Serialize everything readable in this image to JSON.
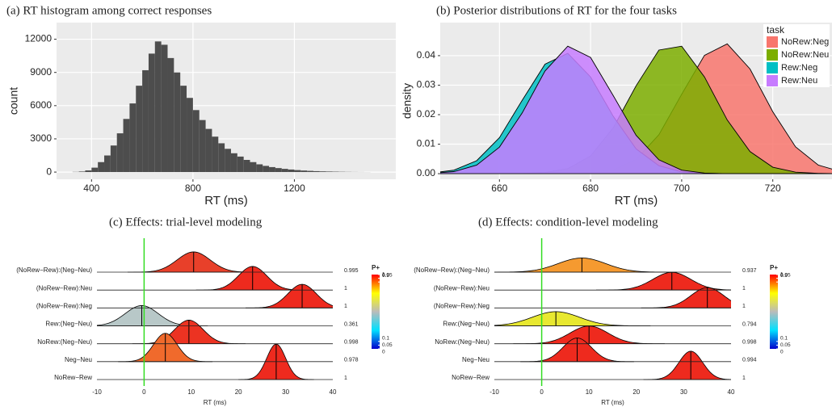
{
  "chart_data": [
    {
      "type": "histogram",
      "title": "(a) RT histogram among correct responses",
      "xlabel": "RT (ms)",
      "ylabel": "count",
      "bins": [
        325,
        350,
        375,
        400,
        425,
        450,
        475,
        500,
        525,
        550,
        575,
        600,
        625,
        650,
        675,
        700,
        725,
        750,
        775,
        800,
        825,
        850,
        875,
        900,
        925,
        950,
        975,
        1000,
        1025,
        1050,
        1075,
        1100,
        1125,
        1150,
        1175,
        1200,
        1225,
        1250,
        1275,
        1300,
        1325,
        1350,
        1375,
        1400,
        1425,
        1450,
        1475,
        1500
      ],
      "counts": [
        20,
        50,
        150,
        400,
        900,
        1500,
        2400,
        3500,
        4800,
        6200,
        7800,
        9200,
        10700,
        11800,
        11500,
        10300,
        9000,
        7800,
        6700,
        5600,
        4700,
        3900,
        3200,
        2600,
        2100,
        1700,
        1400,
        1100,
        900,
        700,
        560,
        450,
        360,
        290,
        230,
        180,
        140,
        110,
        85,
        65,
        50,
        38,
        28,
        20,
        14,
        10,
        6
      ],
      "color": "#4d4d4d",
      "xlim": [
        262,
        1600
      ],
      "ylim": [
        -650,
        13500
      ],
      "xticks": [
        400,
        800,
        1200
      ],
      "yticks": [
        0,
        3000,
        6000,
        9000,
        12000
      ],
      "grid": true
    },
    {
      "type": "density",
      "title": "(b) Posterior distributions of RT for the four tasks",
      "xlabel": "RT (ms)",
      "ylabel": "density",
      "x": [
        645,
        650,
        655,
        660,
        665,
        670,
        675,
        680,
        685,
        690,
        695,
        700,
        705,
        710,
        715,
        720,
        725,
        730,
        735,
        740
      ],
      "series": [
        {
          "name": "NoRew:Neg",
          "color": "#f8766d",
          "values": [
            0,
            0,
            0,
            0,
            0,
            0,
            0,
            0.0003,
            0.0013,
            0.0048,
            0.0132,
            0.0269,
            0.0401,
            0.044,
            0.0355,
            0.021,
            0.0091,
            0.0029,
            0.0007,
            0.0001
          ]
        },
        {
          "name": "NoRew:Neu",
          "color": "#7cae00",
          "values": [
            0,
            0,
            0,
            0,
            0.0001,
            0.0004,
            0.0017,
            0.006,
            0.0156,
            0.0298,
            0.0419,
            0.0432,
            0.0328,
            0.0182,
            0.0075,
            0.0022,
            0.0005,
            0.0001,
            0,
            0
          ]
        },
        {
          "name": "Rew:Neg",
          "color": "#00bfc4",
          "values": [
            0.0002,
            0.0012,
            0.0044,
            0.0122,
            0.0249,
            0.0371,
            0.0408,
            0.0328,
            0.0194,
            0.0084,
            0.0027,
            0.0006,
            0.0001,
            0,
            0,
            0,
            0,
            0,
            0,
            0
          ]
        },
        {
          "name": "Rew:Neu",
          "color": "#c77cff",
          "values": [
            0.0001,
            0.0007,
            0.0029,
            0.009,
            0.0206,
            0.0348,
            0.0432,
            0.0394,
            0.0264,
            0.013,
            0.0047,
            0.0012,
            0.0002,
            0,
            0,
            0,
            0,
            0,
            0,
            0
          ]
        }
      ],
      "xlim": [
        647,
        733
      ],
      "ylim": [
        -0.0019,
        0.0512
      ],
      "xticks": [
        660,
        680,
        700,
        720
      ],
      "yticks": [
        {
          "value": 0,
          "label": "0.00"
        },
        {
          "value": 0.01,
          "label": "0.01"
        },
        {
          "value": 0.02,
          "label": "0.02"
        },
        {
          "value": 0.03,
          "label": "0.03"
        },
        {
          "value": 0.04,
          "label": "0.04"
        }
      ],
      "grid": true,
      "legend_title": "task",
      "legend": "top-right"
    },
    {
      "type": "ridgeline",
      "title": "(c) Effects: trial-level modeling",
      "xlabel": "RT (ms)",
      "categories": [
        "(NoRew−Rew):(Neg−Neu)",
        "(NoRew−Rew):Neu",
        "(NoRew−Rew):Neg",
        "Rew:(Neg−Neu)",
        "NoRew:(Neg−Neu)",
        "Neg−Neu",
        "NoRew−Rew"
      ],
      "values": [
        10.5,
        23,
        33.5,
        -0.5,
        9.5,
        4.5,
        28
      ],
      "sd": [
        3.5,
        3,
        3,
        3.5,
        3,
        2.5,
        2
      ],
      "p_plus": [
        0.995,
        1,
        1,
        0.361,
        0.998,
        0.978,
        1
      ],
      "colors": [
        "#e8402a",
        "#ee2a1e",
        "#ee2a1e",
        "#b8c8c8",
        "#ec3322",
        "#f06a2c",
        "#ee2a1e"
      ],
      "xlim": [
        -10,
        40
      ],
      "xticks": [
        -10,
        0,
        10,
        20,
        30,
        40
      ],
      "ref_line": 0,
      "ref_color": "#33dd22",
      "colorbar": {
        "title": "P+",
        "colors": [
          "#0000cc",
          "#00e0ff",
          "#bbbbbb",
          "#ffff00",
          "#ff0000"
        ],
        "ticks": [
          0,
          0.05,
          0.1,
          0.9,
          0.95,
          1
        ]
      }
    },
    {
      "type": "ridgeline",
      "title": "(d) Effects: condition-level modeling",
      "xlabel": "RT (ms)",
      "categories": [
        "(NoRew−Rew):(Neg−Neu)",
        "(NoRew−Rew):Neu",
        "(NoRew−Rew):Neg",
        "Rew:(Neg−Neu)",
        "NoRew:(Neg−Neu)",
        "Neg−Neu",
        "NoRew−Rew"
      ],
      "values": [
        8.5,
        27.5,
        35,
        3,
        10,
        7.5,
        31.5
      ],
      "sd": [
        5,
        4,
        3.5,
        5,
        4,
        3,
        2.5
      ],
      "p_plus": [
        0.937,
        1,
        1,
        0.794,
        0.998,
        0.994,
        1
      ],
      "colors": [
        "#f59a30",
        "#ee2a1e",
        "#ee2a1e",
        "#e8e830",
        "#ee2a1e",
        "#ee2a1e",
        "#ee2a1e"
      ],
      "xlim": [
        -10,
        40
      ],
      "xticks": [
        -10,
        0,
        10,
        20,
        30,
        40
      ],
      "ref_line": 0,
      "ref_color": "#33dd22",
      "colorbar": {
        "title": "P+",
        "colors": [
          "#0000cc",
          "#00e0ff",
          "#bbbbbb",
          "#ffff00",
          "#ff0000"
        ],
        "ticks": [
          0,
          0.05,
          0.1,
          0.9,
          0.95,
          1
        ]
      }
    }
  ]
}
